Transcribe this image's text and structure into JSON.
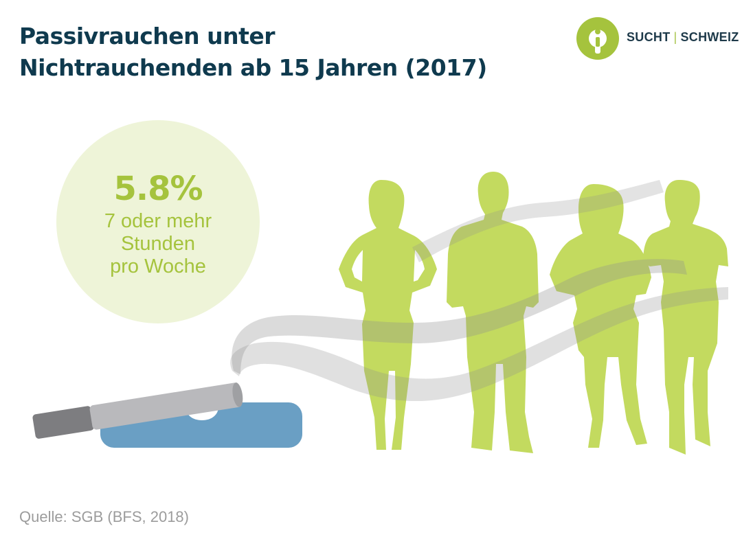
{
  "title": {
    "line1": "Passivrauchen unter",
    "line2": "Nichtrauchenden ab 15 Jahren (2017)"
  },
  "logo": {
    "left": "SUCHT",
    "separator": "|",
    "right": "SCHWEIZ",
    "icon": "info-person-icon",
    "color": "#a5c33d"
  },
  "chart_data": {
    "type": "pictogram",
    "values": [
      5.8
    ],
    "unit": "%",
    "value_label": "5.8%",
    "label": "7 oder mehr Stunden pro Woche"
  },
  "stat": {
    "value": "5.8%",
    "label_lines": [
      "7 oder mehr",
      "Stunden",
      "pro Woche"
    ]
  },
  "illustration": {
    "icons": [
      "cigarette-icon",
      "ashtray-icon",
      "smoke-icon",
      "person-silhouette-icon"
    ],
    "people_count": 4
  },
  "colors": {
    "title": "#0f3a4e",
    "accent_green": "#a5c33d",
    "circle_bg": "#eef4d8",
    "ashtray": "#6a9fc4",
    "smoke": "#d9d9d9",
    "source": "#9c9c9c"
  },
  "source": "Quelle: SGB (BFS, 2018)"
}
